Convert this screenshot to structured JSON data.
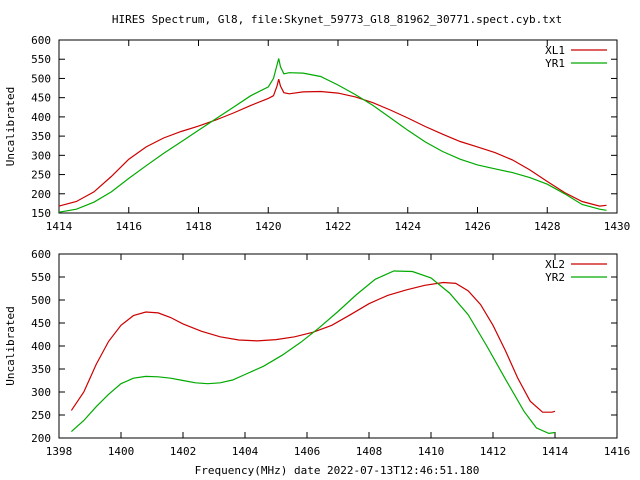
{
  "title": "HIRES Spectrum, Gl8, file:Skynet_59773_Gl8_81962_30771.spect.cyb.txt",
  "xlabel": "Frequency(MHz) date 2022-07-13T12:46:51.180",
  "chart_data": [
    {
      "type": "line",
      "ylabel": "Uncalibrated",
      "xlim": [
        1414,
        1430
      ],
      "ylim": [
        150,
        600
      ],
      "xticks": [
        1414,
        1416,
        1418,
        1420,
        1422,
        1424,
        1426,
        1428,
        1430
      ],
      "yticks": [
        150,
        200,
        250,
        300,
        350,
        400,
        450,
        500,
        550,
        600
      ],
      "legend": "top-right",
      "series": [
        {
          "name": "XL1",
          "color": "#cc0000",
          "points": [
            [
              1414.0,
              168
            ],
            [
              1414.5,
              180
            ],
            [
              1415.0,
              205
            ],
            [
              1415.5,
              245
            ],
            [
              1416.0,
              290
            ],
            [
              1416.5,
              322
            ],
            [
              1417.0,
              345
            ],
            [
              1417.5,
              362
            ],
            [
              1418.0,
              376
            ],
            [
              1418.5,
              392
            ],
            [
              1419.0,
              410
            ],
            [
              1419.5,
              430
            ],
            [
              1420.0,
              448
            ],
            [
              1420.15,
              455
            ],
            [
              1420.25,
              480
            ],
            [
              1420.3,
              498
            ],
            [
              1420.35,
              480
            ],
            [
              1420.45,
              463
            ],
            [
              1420.6,
              460
            ],
            [
              1421.0,
              465
            ],
            [
              1421.5,
              466
            ],
            [
              1422.0,
              462
            ],
            [
              1422.5,
              452
            ],
            [
              1423.0,
              437
            ],
            [
              1423.5,
              418
            ],
            [
              1424.0,
              397
            ],
            [
              1424.5,
              375
            ],
            [
              1425.0,
              355
            ],
            [
              1425.5,
              336
            ],
            [
              1426.0,
              322
            ],
            [
              1426.5,
              307
            ],
            [
              1427.0,
              288
            ],
            [
              1427.5,
              262
            ],
            [
              1428.0,
              232
            ],
            [
              1428.5,
              203
            ],
            [
              1429.0,
              180
            ],
            [
              1429.5,
              168
            ],
            [
              1429.7,
              170
            ]
          ]
        },
        {
          "name": "YR1",
          "color": "#00aa00",
          "points": [
            [
              1414.0,
              152
            ],
            [
              1414.5,
              160
            ],
            [
              1415.0,
              178
            ],
            [
              1415.5,
              205
            ],
            [
              1416.0,
              240
            ],
            [
              1416.5,
              273
            ],
            [
              1417.0,
              305
            ],
            [
              1417.5,
              335
            ],
            [
              1418.0,
              365
            ],
            [
              1418.5,
              395
            ],
            [
              1419.0,
              425
            ],
            [
              1419.5,
              455
            ],
            [
              1420.0,
              478
            ],
            [
              1420.15,
              500
            ],
            [
              1420.25,
              535
            ],
            [
              1420.3,
              552
            ],
            [
              1420.35,
              530
            ],
            [
              1420.45,
              512
            ],
            [
              1420.6,
              515
            ],
            [
              1421.0,
              514
            ],
            [
              1421.5,
              505
            ],
            [
              1422.0,
              483
            ],
            [
              1422.5,
              458
            ],
            [
              1423.0,
              430
            ],
            [
              1423.5,
              398
            ],
            [
              1424.0,
              365
            ],
            [
              1424.5,
              335
            ],
            [
              1425.0,
              310
            ],
            [
              1425.5,
              290
            ],
            [
              1426.0,
              275
            ],
            [
              1426.5,
              265
            ],
            [
              1427.0,
              255
            ],
            [
              1427.5,
              242
            ],
            [
              1428.0,
              225
            ],
            [
              1428.5,
              200
            ],
            [
              1429.0,
              172
            ],
            [
              1429.5,
              160
            ],
            [
              1429.7,
              157
            ]
          ]
        }
      ]
    },
    {
      "type": "line",
      "ylabel": "Uncalibrated",
      "xlim": [
        1398,
        1416
      ],
      "ylim": [
        200,
        600
      ],
      "xticks": [
        1398,
        1400,
        1402,
        1404,
        1406,
        1408,
        1410,
        1412,
        1414,
        1416
      ],
      "yticks": [
        200,
        250,
        300,
        350,
        400,
        450,
        500,
        550,
        600
      ],
      "legend": "top-right",
      "series": [
        {
          "name": "XL2",
          "color": "#cc0000",
          "points": [
            [
              1398.4,
              260
            ],
            [
              1398.8,
              300
            ],
            [
              1399.2,
              360
            ],
            [
              1399.6,
              410
            ],
            [
              1400.0,
              445
            ],
            [
              1400.4,
              466
            ],
            [
              1400.8,
              474
            ],
            [
              1401.2,
              472
            ],
            [
              1401.6,
              462
            ],
            [
              1402.0,
              448
            ],
            [
              1402.6,
              432
            ],
            [
              1403.2,
              420
            ],
            [
              1403.8,
              413
            ],
            [
              1404.4,
              411
            ],
            [
              1405.0,
              414
            ],
            [
              1405.6,
              420
            ],
            [
              1406.2,
              430
            ],
            [
              1406.8,
              445
            ],
            [
              1407.4,
              468
            ],
            [
              1408.0,
              492
            ],
            [
              1408.6,
              510
            ],
            [
              1409.2,
              522
            ],
            [
              1409.8,
              532
            ],
            [
              1410.4,
              538
            ],
            [
              1410.8,
              536
            ],
            [
              1411.2,
              520
            ],
            [
              1411.6,
              490
            ],
            [
              1412.0,
              445
            ],
            [
              1412.4,
              390
            ],
            [
              1412.8,
              330
            ],
            [
              1413.2,
              280
            ],
            [
              1413.6,
              256
            ],
            [
              1413.9,
              256
            ],
            [
              1414.0,
              258
            ]
          ]
        },
        {
          "name": "YR2",
          "color": "#00aa00",
          "points": [
            [
              1398.4,
              214
            ],
            [
              1398.8,
              238
            ],
            [
              1399.2,
              268
            ],
            [
              1399.6,
              295
            ],
            [
              1400.0,
              318
            ],
            [
              1400.4,
              330
            ],
            [
              1400.8,
              334
            ],
            [
              1401.2,
              333
            ],
            [
              1401.6,
              330
            ],
            [
              1402.0,
              325
            ],
            [
              1402.4,
              320
            ],
            [
              1402.8,
              318
            ],
            [
              1403.2,
              320
            ],
            [
              1403.6,
              326
            ],
            [
              1404.0,
              338
            ],
            [
              1404.6,
              356
            ],
            [
              1405.2,
              380
            ],
            [
              1405.8,
              408
            ],
            [
              1406.4,
              440
            ],
            [
              1407.0,
              475
            ],
            [
              1407.6,
              512
            ],
            [
              1408.2,
              545
            ],
            [
              1408.8,
              563
            ],
            [
              1409.4,
              562
            ],
            [
              1410.0,
              548
            ],
            [
              1410.6,
              515
            ],
            [
              1411.2,
              468
            ],
            [
              1411.8,
              400
            ],
            [
              1412.4,
              328
            ],
            [
              1413.0,
              258
            ],
            [
              1413.4,
              222
            ],
            [
              1413.8,
              210
            ],
            [
              1414.0,
              212
            ]
          ]
        }
      ]
    }
  ]
}
